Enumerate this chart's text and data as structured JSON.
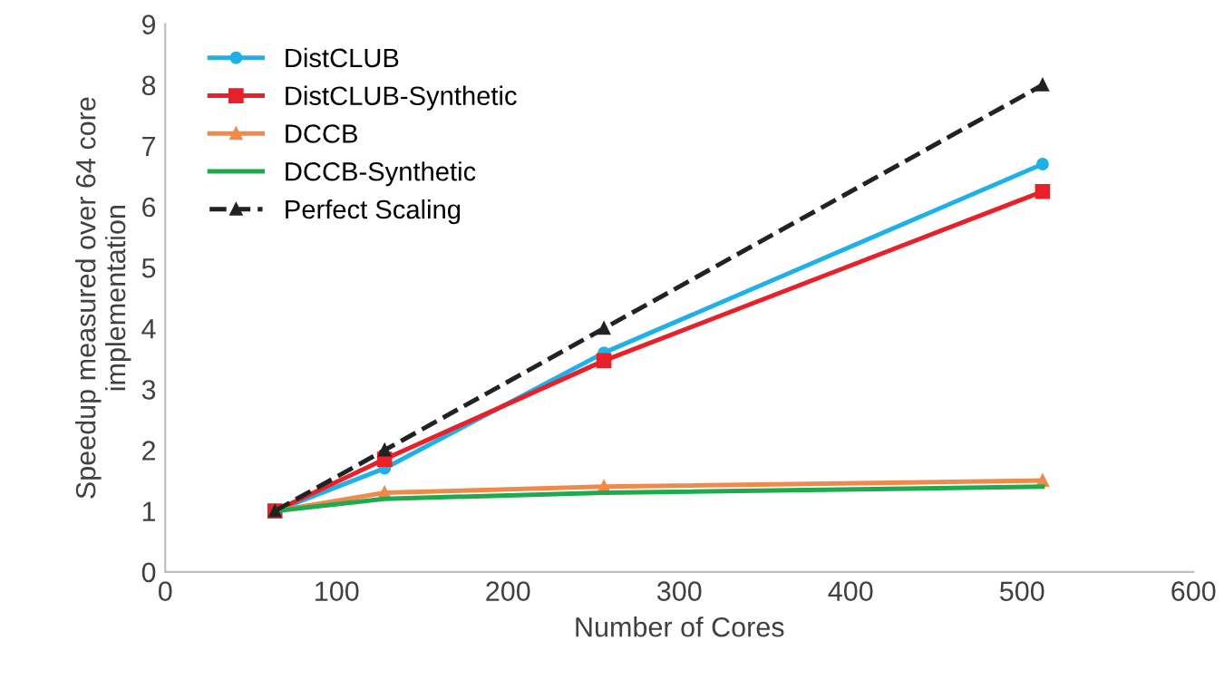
{
  "chart_data": {
    "type": "line",
    "xlabel": "Number of Cores",
    "ylabel": "Speedup measured over 64 core\nimplementation",
    "x": [
      64,
      128,
      256,
      512
    ],
    "series": [
      {
        "name": "DistCLUB",
        "color": "#1fb0e8",
        "marker": "circle",
        "values": [
          1,
          1.7,
          3.6,
          6.7
        ]
      },
      {
        "name": "DistCLUB-Synthetic",
        "color": "#e8202a",
        "marker": "square",
        "values": [
          1,
          1.85,
          3.47,
          6.25
        ]
      },
      {
        "name": "DCCB",
        "color": "#f08a4b",
        "marker": "triangle",
        "values": [
          1,
          1.3,
          1.4,
          1.5
        ]
      },
      {
        "name": "DCCB-Synthetic",
        "color": "#1faa4f",
        "marker": "none",
        "values": [
          1,
          1.2,
          1.3,
          1.4
        ]
      },
      {
        "name": "Perfect Scaling",
        "color": "#222222",
        "marker": "triangle",
        "line_style": "dashed",
        "values": [
          1,
          2,
          4,
          8
        ]
      }
    ],
    "xlim": [
      0,
      600
    ],
    "xticks": [
      0,
      100,
      200,
      300,
      400,
      500,
      600
    ],
    "ylim": [
      0,
      9
    ],
    "yticks": [
      0,
      1,
      2,
      3,
      4,
      5,
      6,
      7,
      8,
      9
    ],
    "grid": false,
    "legend": "top left"
  }
}
